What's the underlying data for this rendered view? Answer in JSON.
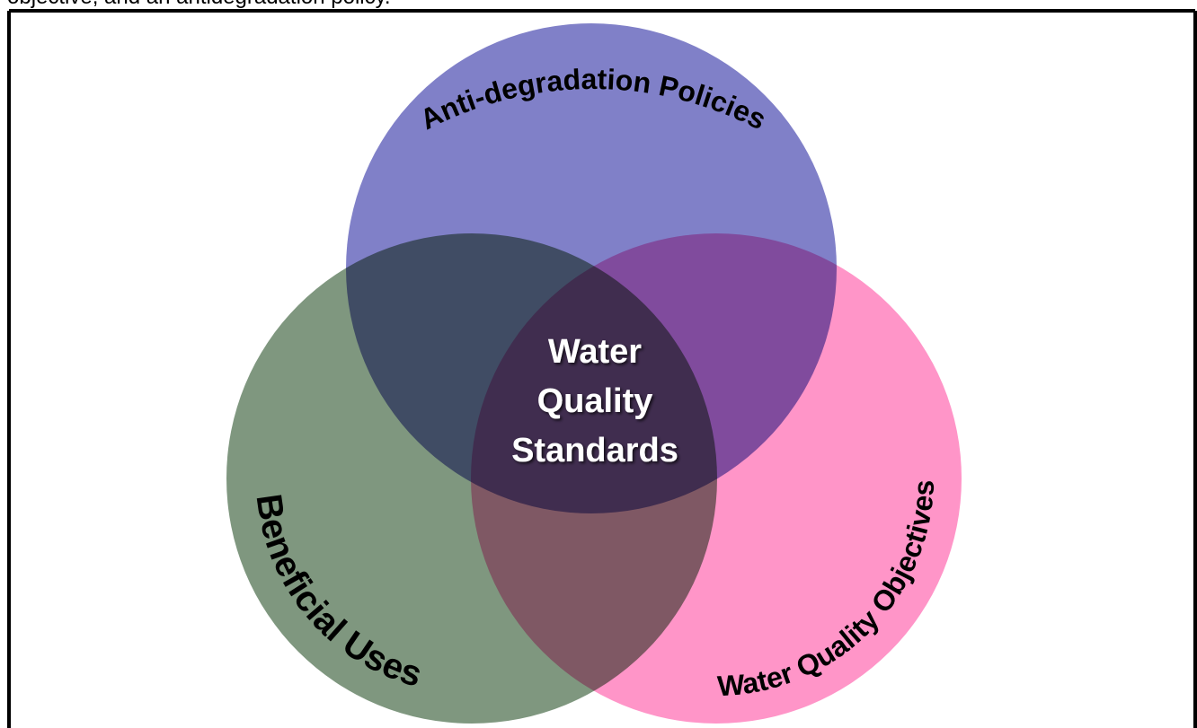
{
  "header": {
    "fragment": "objective, and an antidegradation policy."
  },
  "diagram": {
    "circles": [
      {
        "label": "Anti-degradation Policies",
        "color": "#8080c8"
      },
      {
        "label": "Beneficial Uses",
        "color": "#7f977f"
      },
      {
        "label": "Water Quality Objectives",
        "color": "#ff95c8"
      }
    ],
    "center_label": [
      "Water",
      "Quality",
      "Standards"
    ]
  }
}
